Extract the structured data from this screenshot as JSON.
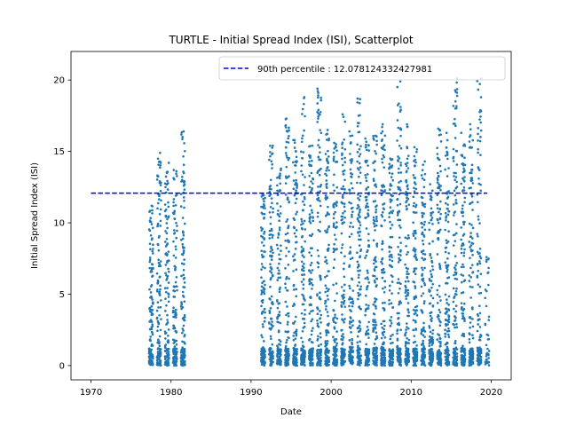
{
  "chart_data": {
    "type": "scatter",
    "title": "TURTLE - Initial Spread Index (ISI), Scatterplot",
    "xlabel": "Date",
    "ylabel": "Initial Spread Index (ISI)",
    "xlim": [
      1967.5,
      2022.5
    ],
    "ylim": [
      -1.0,
      22.0
    ],
    "xticks": [
      1970,
      1980,
      1990,
      2000,
      2010,
      2020
    ],
    "yticks": [
      0,
      5,
      10,
      15,
      20
    ],
    "point_color": "#1f77b4",
    "percentile_line": {
      "label": "90th percentile : 12.078124332427981",
      "value": 12.078124332427981,
      "x_start": 1970,
      "x_end": 2019.5,
      "color": "#0000cd",
      "style": "dashed"
    },
    "legend_position": "upper right",
    "seasons": [
      {
        "year": 1977,
        "max": 11.2
      },
      {
        "year": 1978,
        "max": 14.9
      },
      {
        "year": 1979,
        "max": 14.2
      },
      {
        "year": 1980,
        "max": 13.7
      },
      {
        "year": 1981,
        "max": 16.4
      },
      {
        "year": 1991,
        "max": 12.0
      },
      {
        "year": 1992,
        "max": 15.4
      },
      {
        "year": 1993,
        "max": 13.8
      },
      {
        "year": 1994,
        "max": 17.3
      },
      {
        "year": 1995,
        "max": 15.8
      },
      {
        "year": 1996,
        "max": 18.8
      },
      {
        "year": 1997,
        "max": 15.4
      },
      {
        "year": 1998,
        "max": 19.4
      },
      {
        "year": 1999,
        "max": 16.5
      },
      {
        "year": 2000,
        "max": 15.6
      },
      {
        "year": 2001,
        "max": 17.6
      },
      {
        "year": 2002,
        "max": 16.4
      },
      {
        "year": 2003,
        "max": 18.7
      },
      {
        "year": 2004,
        "max": 15.9
      },
      {
        "year": 2005,
        "max": 16.1
      },
      {
        "year": 2006,
        "max": 16.9
      },
      {
        "year": 2007,
        "max": 14.5
      },
      {
        "year": 2008,
        "max": 19.9
      },
      {
        "year": 2009,
        "max": 16.9
      },
      {
        "year": 2010,
        "max": 15.3
      },
      {
        "year": 2011,
        "max": 14.3
      },
      {
        "year": 2012,
        "max": 12.7
      },
      {
        "year": 2013,
        "max": 16.6
      },
      {
        "year": 2014,
        "max": 16.3
      },
      {
        "year": 2015,
        "max": 20.1
      },
      {
        "year": 2016,
        "max": 16.3
      },
      {
        "year": 2017,
        "max": 16.9
      },
      {
        "year": 2018,
        "max": 20.1
      },
      {
        "year": 2019,
        "max": 7.6
      }
    ]
  }
}
